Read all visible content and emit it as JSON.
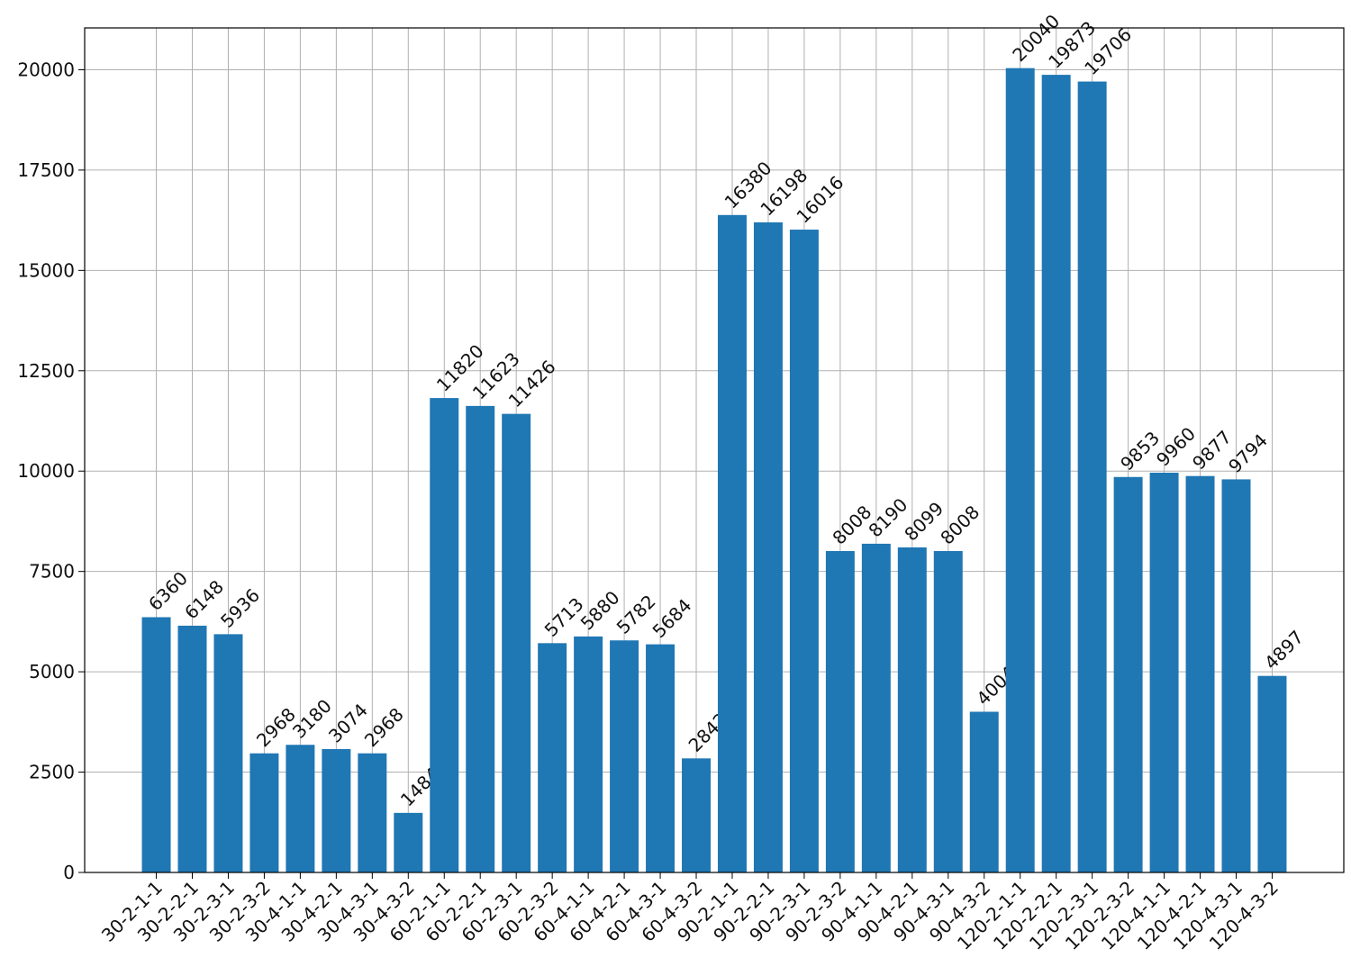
{
  "chart_data": {
    "type": "bar",
    "categories": [
      "30-2-1-1",
      "30-2-2-1",
      "30-2-3-1",
      "30-2-3-2",
      "30-4-1-1",
      "30-4-2-1",
      "30-4-3-1",
      "30-4-3-2",
      "60-2-1-1",
      "60-2-2-1",
      "60-2-3-1",
      "60-2-3-2",
      "60-4-1-1",
      "60-4-2-1",
      "60-4-3-1",
      "60-4-3-2",
      "90-2-1-1",
      "90-2-2-1",
      "90-2-3-1",
      "90-2-3-2",
      "90-4-1-1",
      "90-4-2-1",
      "90-4-3-1",
      "90-4-3-2",
      "120-2-1-1",
      "120-2-2-1",
      "120-2-3-1",
      "120-2-3-2",
      "120-4-1-1",
      "120-4-2-1",
      "120-4-3-1",
      "120-4-3-2"
    ],
    "values": [
      6360,
      6148,
      5936,
      2968,
      3180,
      3074,
      2968,
      1484,
      11820,
      11623,
      11426,
      5713,
      5880,
      5782,
      5684,
      2842,
      16380,
      16198,
      16016,
      8008,
      8190,
      8099,
      8008,
      4004,
      20040,
      19873,
      19706,
      9853,
      9960,
      9877,
      9794,
      4897
    ],
    "color": "#1f77b4",
    "ylim": [
      0,
      21042
    ],
    "yticks": [
      0,
      2500,
      5000,
      7500,
      10000,
      12500,
      15000,
      17500,
      20000
    ],
    "grid": true
  }
}
